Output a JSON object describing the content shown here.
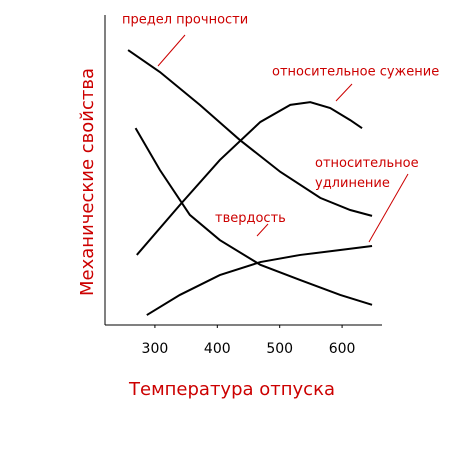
{
  "chart_data": {
    "type": "line",
    "x_label": "Температура отпуска",
    "y_label": "Механические свойства",
    "xlim": [
      220,
      680
    ],
    "xticks": [
      300,
      400,
      500,
      600
    ],
    "ylim": [
      0,
      100
    ],
    "series": [
      {
        "name": "предел прочности",
        "color": "#000000",
        "x": [
          257,
          308,
          372,
          436,
          501,
          565,
          613,
          648
        ],
        "values": [
          88.7,
          81.6,
          71.0,
          59.7,
          49.4,
          41.0,
          37.1,
          35.2
        ]
      },
      {
        "name": "относительное сужение",
        "color": "#000000",
        "x": [
          271,
          340,
          404,
          469,
          517,
          549,
          581,
          613,
          632
        ],
        "values": [
          22.6,
          38.7,
          53.2,
          65.5,
          71.0,
          71.9,
          70.0,
          66.1,
          63.5
        ]
      },
      {
        "name": "относительное удлинение",
        "color": "#000000",
        "x": [
          287,
          340,
          404,
          469,
          533,
          597,
          648
        ],
        "values": [
          3.2,
          9.7,
          16.1,
          20.3,
          22.6,
          24.2,
          25.5
        ]
      },
      {
        "name": "твердость",
        "color": "#000000",
        "x": [
          269,
          308,
          356,
          404,
          469,
          533,
          597,
          648
        ],
        "values": [
          63.5,
          50.0,
          35.5,
          27.4,
          19.4,
          14.5,
          9.7,
          6.5
        ]
      }
    ],
    "annotation_color": "#cc0000"
  }
}
